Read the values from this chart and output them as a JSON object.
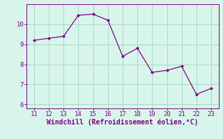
{
  "x": [
    11,
    12,
    13,
    14,
    15,
    16,
    17,
    18,
    19,
    20,
    21,
    22,
    23
  ],
  "y": [
    9.2,
    9.3,
    9.4,
    10.45,
    10.5,
    10.2,
    8.4,
    8.8,
    7.6,
    7.7,
    7.9,
    6.5,
    6.8
  ],
  "line_color": "#800080",
  "marker_color": "#800080",
  "bg_color": "#D8F5EC",
  "grid_color": "#A8D8CC",
  "xlabel": "Windchill (Refroidissement éolien,°C)",
  "xlabel_color": "#800080",
  "tick_color": "#800080",
  "spine_color": "#800080",
  "xlim": [
    10.5,
    23.5
  ],
  "ylim": [
    5.8,
    11.0
  ],
  "xticks": [
    11,
    12,
    13,
    14,
    15,
    16,
    17,
    18,
    19,
    20,
    21,
    22,
    23
  ],
  "yticks": [
    6,
    7,
    8,
    9,
    10
  ],
  "tick_fontsize": 6.5,
  "xlabel_fontsize": 7.0
}
